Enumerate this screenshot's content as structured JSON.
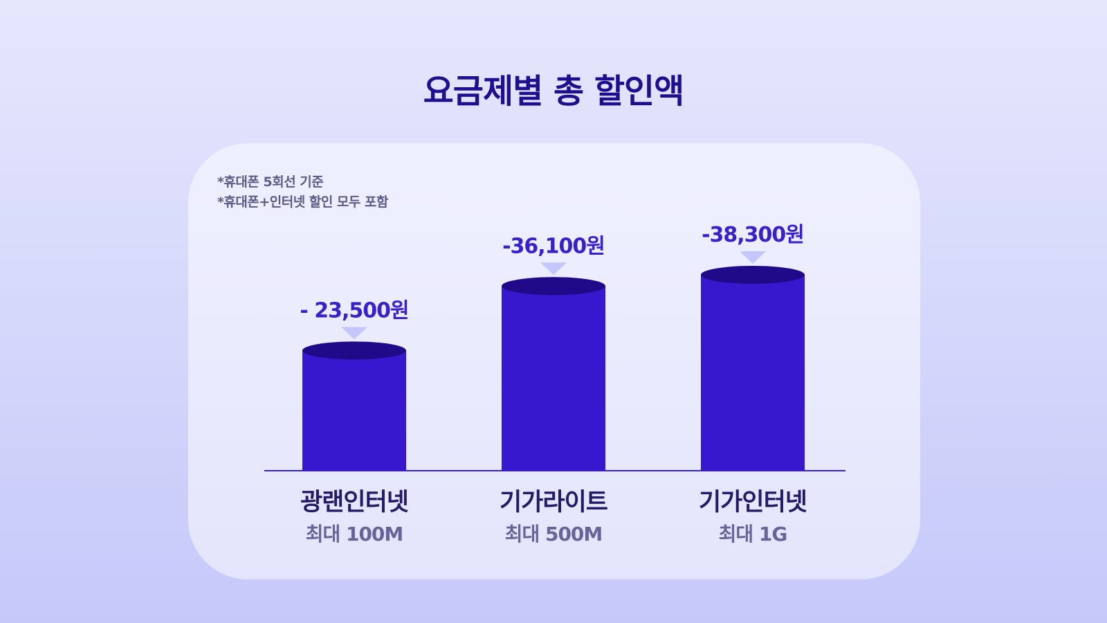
{
  "title": "요금제별 총 할인액",
  "notes": [
    "*휴대폰 5회선 기준",
    "*휴대폰+인터넷 할인 모두 포함"
  ],
  "colors": {
    "bar_body": "#3818cf",
    "bar_top": "#200a8a",
    "axis": "#3a20c8",
    "label_text": "#3a20c8",
    "pointer": "#c5c6fb"
  },
  "chart_data": {
    "type": "bar",
    "categories": [
      {
        "name": "광랜인터넷",
        "sub": "최대 100M"
      },
      {
        "name": "기가라이트",
        "sub": "최대 500M"
      },
      {
        "name": "기가인터넷",
        "sub": "최대 1G"
      }
    ],
    "values": [
      -23500,
      -36100,
      -38300
    ],
    "value_labels": [
      "- 23,500원",
      "-36,100원",
      "-38,300원"
    ],
    "title": "요금제별 총 할인액"
  }
}
